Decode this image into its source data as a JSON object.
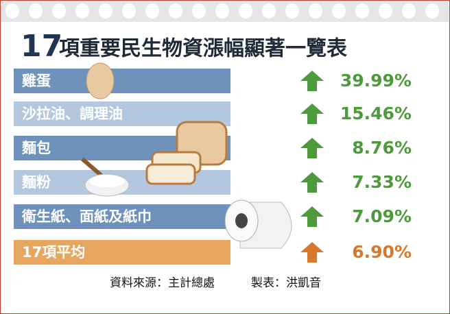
{
  "title": {
    "number": "17",
    "text": "項重要民生物資漲幅顯著一覽表"
  },
  "table": {
    "rows": [
      [
        "雞蛋",
        "39.99%"
      ],
      [
        "沙拉油、調理油",
        "15.46%"
      ],
      [
        "麵包",
        "8.76%"
      ],
      [
        "麵粉",
        "7.33%"
      ],
      [
        "衛生紙、面紙及紙巾",
        "7.09%"
      ],
      [
        "17項平均",
        "6.90%"
      ]
    ]
  },
  "footer": {
    "source": "資料來源：主計總處",
    "credit": "製表：洪凱音"
  }
}
